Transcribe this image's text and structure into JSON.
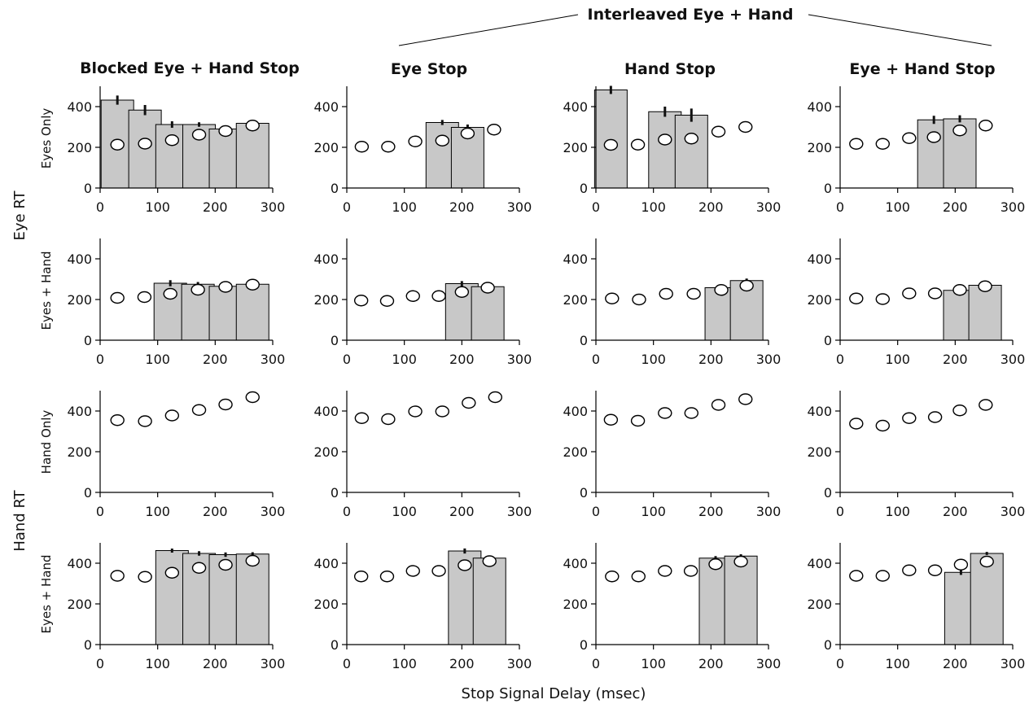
{
  "figure": {
    "group_title": "Interleaved Eye + Hand",
    "columns": [
      "Blocked Eye + Hand Stop",
      "Eye Stop",
      "Hand Stop",
      "Eye + Hand Stop"
    ],
    "row_labels": [
      "Eyes Only",
      "Eyes + Hand",
      "Hand Only",
      "Eyes + Hand"
    ],
    "side_labels": [
      "Eye RT",
      "Hand RT"
    ],
    "xlabel": "Stop Signal Delay (msec)"
  },
  "chart_data": [
    {
      "type": "bar",
      "row": 0,
      "col": 0,
      "xlim": [
        0,
        300
      ],
      "ylim": [
        0,
        500
      ],
      "xticks": [
        0,
        100,
        200,
        300
      ],
      "yticks": [
        0,
        200,
        400
      ],
      "bars": [
        {
          "x": 30,
          "y": 432,
          "err": 45
        },
        {
          "x": 78,
          "y": 383,
          "err": 50
        },
        {
          "x": 125,
          "y": 312,
          "err": 32
        },
        {
          "x": 172,
          "y": 312,
          "err": 22
        },
        {
          "x": 218,
          "y": 290,
          "err": 15
        },
        {
          "x": 265,
          "y": 318,
          "err": 10
        }
      ],
      "points": [
        {
          "x": 30,
          "y": 213
        },
        {
          "x": 78,
          "y": 218
        },
        {
          "x": 125,
          "y": 235
        },
        {
          "x": 172,
          "y": 262
        },
        {
          "x": 218,
          "y": 280
        },
        {
          "x": 265,
          "y": 307
        }
      ]
    },
    {
      "type": "bar",
      "row": 0,
      "col": 1,
      "xlim": [
        0,
        300
      ],
      "ylim": [
        0,
        500
      ],
      "xticks": [
        0,
        100,
        200,
        300
      ],
      "yticks": [
        0,
        200,
        400
      ],
      "bars": [
        {
          "x": 166,
          "y": 322,
          "err": 25
        },
        {
          "x": 210,
          "y": 298,
          "err": 28
        }
      ],
      "points": [
        {
          "x": 26,
          "y": 203
        },
        {
          "x": 72,
          "y": 203
        },
        {
          "x": 119,
          "y": 229
        },
        {
          "x": 166,
          "y": 233
        },
        {
          "x": 210,
          "y": 268
        },
        {
          "x": 256,
          "y": 287
        }
      ]
    },
    {
      "type": "bar",
      "row": 0,
      "col": 2,
      "xlim": [
        0,
        300
      ],
      "ylim": [
        0,
        500
      ],
      "xticks": [
        0,
        100,
        200,
        300
      ],
      "yticks": [
        0,
        200,
        400
      ],
      "bars": [
        {
          "x": 26,
          "y": 482,
          "err": 40
        },
        {
          "x": 120,
          "y": 375,
          "err": 50
        },
        {
          "x": 166,
          "y": 358,
          "err": 65
        }
      ],
      "points": [
        {
          "x": 26,
          "y": 212
        },
        {
          "x": 73,
          "y": 213
        },
        {
          "x": 120,
          "y": 238
        },
        {
          "x": 166,
          "y": 243
        },
        {
          "x": 213,
          "y": 277
        },
        {
          "x": 260,
          "y": 300
        }
      ]
    },
    {
      "type": "bar",
      "row": 0,
      "col": 3,
      "xlim": [
        0,
        300
      ],
      "ylim": [
        0,
        500
      ],
      "xticks": [
        0,
        100,
        200,
        300
      ],
      "yticks": [
        0,
        200,
        400
      ],
      "bars": [
        {
          "x": 163,
          "y": 335,
          "err": 40
        },
        {
          "x": 208,
          "y": 340,
          "err": 35
        }
      ],
      "points": [
        {
          "x": 28,
          "y": 217
        },
        {
          "x": 74,
          "y": 217
        },
        {
          "x": 120,
          "y": 245
        },
        {
          "x": 163,
          "y": 250
        },
        {
          "x": 208,
          "y": 283
        },
        {
          "x": 253,
          "y": 307
        }
      ]
    },
    {
      "type": "bar",
      "row": 1,
      "col": 0,
      "xlim": [
        0,
        300
      ],
      "ylim": [
        0,
        500
      ],
      "xticks": [
        0,
        100,
        200,
        300
      ],
      "yticks": [
        0,
        200,
        400
      ],
      "bars": [
        {
          "x": 122,
          "y": 280,
          "err": 30
        },
        {
          "x": 170,
          "y": 275,
          "err": 22
        },
        {
          "x": 218,
          "y": 265,
          "err": 12
        },
        {
          "x": 265,
          "y": 275,
          "err": 10
        }
      ],
      "points": [
        {
          "x": 30,
          "y": 208
        },
        {
          "x": 77,
          "y": 212
        },
        {
          "x": 122,
          "y": 228
        },
        {
          "x": 170,
          "y": 248
        },
        {
          "x": 218,
          "y": 262
        },
        {
          "x": 265,
          "y": 273
        }
      ]
    },
    {
      "type": "bar",
      "row": 1,
      "col": 1,
      "xlim": [
        0,
        300
      ],
      "ylim": [
        0,
        500
      ],
      "xticks": [
        0,
        100,
        200,
        300
      ],
      "yticks": [
        0,
        200,
        400
      ],
      "bars": [
        {
          "x": 200,
          "y": 278,
          "err": 25
        },
        {
          "x": 245,
          "y": 263,
          "err": 10
        }
      ],
      "points": [
        {
          "x": 25,
          "y": 195
        },
        {
          "x": 70,
          "y": 193
        },
        {
          "x": 115,
          "y": 217
        },
        {
          "x": 160,
          "y": 217
        },
        {
          "x": 200,
          "y": 237
        },
        {
          "x": 245,
          "y": 258
        }
      ]
    },
    {
      "type": "bar",
      "row": 1,
      "col": 2,
      "xlim": [
        0,
        300
      ],
      "ylim": [
        0,
        500
      ],
      "xticks": [
        0,
        100,
        200,
        300
      ],
      "yticks": [
        0,
        200,
        400
      ],
      "bars": [
        {
          "x": 218,
          "y": 258,
          "err": 20
        },
        {
          "x": 262,
          "y": 293,
          "err": 20
        }
      ],
      "points": [
        {
          "x": 28,
          "y": 205
        },
        {
          "x": 75,
          "y": 200
        },
        {
          "x": 122,
          "y": 228
        },
        {
          "x": 170,
          "y": 228
        },
        {
          "x": 218,
          "y": 247
        },
        {
          "x": 262,
          "y": 268
        }
      ]
    },
    {
      "type": "bar",
      "row": 1,
      "col": 3,
      "xlim": [
        0,
        300
      ],
      "ylim": [
        0,
        500
      ],
      "xticks": [
        0,
        100,
        200,
        300
      ],
      "yticks": [
        0,
        200,
        400
      ],
      "bars": [
        {
          "x": 208,
          "y": 245,
          "err": 30
        },
        {
          "x": 252,
          "y": 270,
          "err": 12
        }
      ],
      "points": [
        {
          "x": 28,
          "y": 205
        },
        {
          "x": 74,
          "y": 202
        },
        {
          "x": 120,
          "y": 230
        },
        {
          "x": 165,
          "y": 230
        },
        {
          "x": 208,
          "y": 247
        },
        {
          "x": 252,
          "y": 265
        }
      ]
    },
    {
      "type": "scatter",
      "row": 2,
      "col": 0,
      "xlim": [
        0,
        300
      ],
      "ylim": [
        0,
        500
      ],
      "xticks": [
        0,
        100,
        200,
        300
      ],
      "yticks": [
        0,
        200,
        400
      ],
      "bars": [],
      "points": [
        {
          "x": 30,
          "y": 355
        },
        {
          "x": 78,
          "y": 350
        },
        {
          "x": 125,
          "y": 378
        },
        {
          "x": 172,
          "y": 405
        },
        {
          "x": 218,
          "y": 432
        },
        {
          "x": 265,
          "y": 468
        }
      ]
    },
    {
      "type": "scatter",
      "row": 2,
      "col": 1,
      "xlim": [
        0,
        300
      ],
      "ylim": [
        0,
        500
      ],
      "xticks": [
        0,
        100,
        200,
        300
      ],
      "yticks": [
        0,
        200,
        400
      ],
      "bars": [],
      "points": [
        {
          "x": 26,
          "y": 365
        },
        {
          "x": 72,
          "y": 360
        },
        {
          "x": 119,
          "y": 398
        },
        {
          "x": 166,
          "y": 398
        },
        {
          "x": 212,
          "y": 440
        },
        {
          "x": 258,
          "y": 468
        }
      ]
    },
    {
      "type": "scatter",
      "row": 2,
      "col": 2,
      "xlim": [
        0,
        300
      ],
      "ylim": [
        0,
        500
      ],
      "xticks": [
        0,
        100,
        200,
        300
      ],
      "yticks": [
        0,
        200,
        400
      ],
      "bars": [],
      "points": [
        {
          "x": 26,
          "y": 357
        },
        {
          "x": 73,
          "y": 352
        },
        {
          "x": 120,
          "y": 390
        },
        {
          "x": 166,
          "y": 390
        },
        {
          "x": 213,
          "y": 430
        },
        {
          "x": 260,
          "y": 458
        }
      ]
    },
    {
      "type": "scatter",
      "row": 2,
      "col": 3,
      "xlim": [
        0,
        300
      ],
      "ylim": [
        0,
        500
      ],
      "xticks": [
        0,
        100,
        200,
        300
      ],
      "yticks": [
        0,
        200,
        400
      ],
      "bars": [],
      "points": [
        {
          "x": 28,
          "y": 338
        },
        {
          "x": 74,
          "y": 328
        },
        {
          "x": 120,
          "y": 365
        },
        {
          "x": 165,
          "y": 370
        },
        {
          "x": 208,
          "y": 403
        },
        {
          "x": 253,
          "y": 430
        }
      ]
    },
    {
      "type": "bar",
      "row": 3,
      "col": 0,
      "xlim": [
        0,
        300
      ],
      "ylim": [
        0,
        500
      ],
      "xticks": [
        0,
        100,
        200,
        300
      ],
      "yticks": [
        0,
        200,
        400
      ],
      "bars": [
        {
          "x": 125,
          "y": 462,
          "err": 20
        },
        {
          "x": 172,
          "y": 448,
          "err": 22
        },
        {
          "x": 218,
          "y": 442,
          "err": 22
        },
        {
          "x": 265,
          "y": 445,
          "err": 18
        }
      ],
      "points": [
        {
          "x": 30,
          "y": 338
        },
        {
          "x": 78,
          "y": 333
        },
        {
          "x": 125,
          "y": 353
        },
        {
          "x": 172,
          "y": 377
        },
        {
          "x": 218,
          "y": 392
        },
        {
          "x": 265,
          "y": 412
        }
      ]
    },
    {
      "type": "bar",
      "row": 3,
      "col": 1,
      "xlim": [
        0,
        300
      ],
      "ylim": [
        0,
        500
      ],
      "xticks": [
        0,
        100,
        200,
        300
      ],
      "yticks": [
        0,
        200,
        400
      ],
      "bars": [
        {
          "x": 205,
          "y": 460,
          "err": 25
        },
        {
          "x": 248,
          "y": 425,
          "err": 12
        }
      ],
      "points": [
        {
          "x": 25,
          "y": 335
        },
        {
          "x": 70,
          "y": 335
        },
        {
          "x": 115,
          "y": 362
        },
        {
          "x": 160,
          "y": 362
        },
        {
          "x": 205,
          "y": 390
        },
        {
          "x": 248,
          "y": 410
        }
      ]
    },
    {
      "type": "bar",
      "row": 3,
      "col": 2,
      "xlim": [
        0,
        300
      ],
      "ylim": [
        0,
        500
      ],
      "xticks": [
        0,
        100,
        200,
        300
      ],
      "yticks": [
        0,
        200,
        400
      ],
      "bars": [
        {
          "x": 208,
          "y": 425,
          "err": 20
        },
        {
          "x": 252,
          "y": 435,
          "err": 18
        }
      ],
      "points": [
        {
          "x": 28,
          "y": 335
        },
        {
          "x": 74,
          "y": 335
        },
        {
          "x": 120,
          "y": 362
        },
        {
          "x": 165,
          "y": 362
        },
        {
          "x": 208,
          "y": 395
        },
        {
          "x": 252,
          "y": 408
        }
      ]
    },
    {
      "type": "bar",
      "row": 3,
      "col": 3,
      "xlim": [
        0,
        300
      ],
      "ylim": [
        0,
        500
      ],
      "xticks": [
        0,
        100,
        200,
        300
      ],
      "yticks": [
        0,
        200,
        400
      ],
      "bars": [
        {
          "x": 210,
          "y": 355,
          "err": 25
        },
        {
          "x": 255,
          "y": 448,
          "err": 15
        }
      ],
      "points": [
        {
          "x": 28,
          "y": 338
        },
        {
          "x": 74,
          "y": 338
        },
        {
          "x": 120,
          "y": 365
        },
        {
          "x": 165,
          "y": 365
        },
        {
          "x": 210,
          "y": 393
        },
        {
          "x": 255,
          "y": 408
        }
      ]
    }
  ]
}
